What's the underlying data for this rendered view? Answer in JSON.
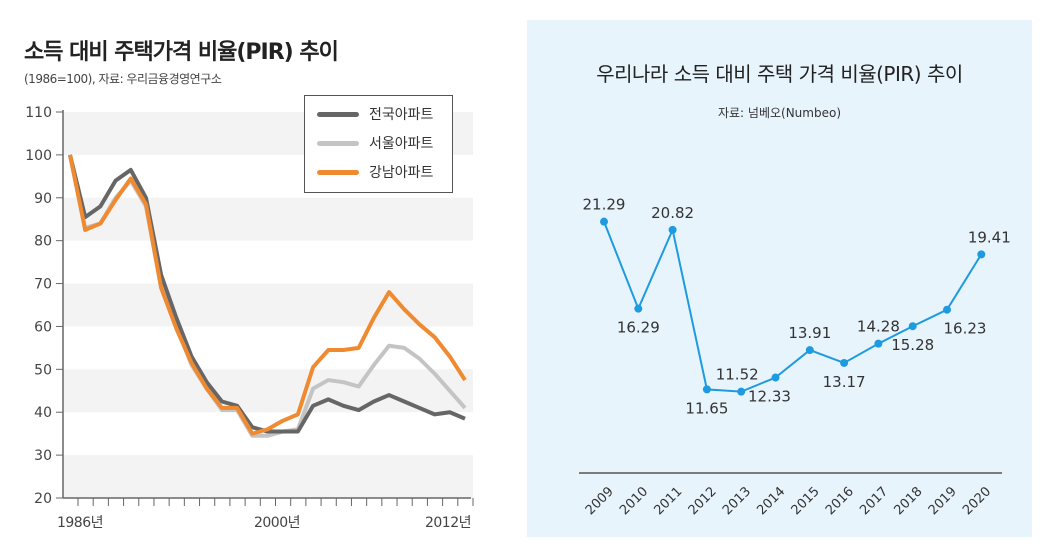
{
  "chart_data": [
    {
      "type": "line",
      "title": "소득 대비 주택가격 비율(PIR) 추이",
      "subtitle": "(1986=100), 자료: 우리금융경영연구소",
      "x": [
        1986,
        1987,
        1988,
        1989,
        1990,
        1991,
        1992,
        1993,
        1994,
        1995,
        1996,
        1997,
        1998,
        1999,
        2000,
        2001,
        2002,
        2003,
        2004,
        2005,
        2006,
        2007,
        2008,
        2009,
        2010,
        2011,
        2012
      ],
      "x_tick_labels": [
        "1986년",
        "2000년",
        "2012년"
      ],
      "y_ticks": [
        20,
        30,
        40,
        50,
        60,
        70,
        80,
        90,
        100,
        110
      ],
      "ylim": [
        20,
        110
      ],
      "grid": "alternating horizontal bands",
      "legend": "top-right",
      "series": [
        {
          "name": "전국아파트",
          "color": "#666666",
          "values": [
            100,
            85.5,
            88,
            94,
            96.5,
            90,
            72,
            62,
            53,
            47,
            42.5,
            41.5,
            36.5,
            35.5,
            35.5,
            35.5,
            41.5,
            43,
            41.5,
            40.5,
            42.5,
            44,
            42.5,
            41,
            39.5,
            40,
            38.5
          ]
        },
        {
          "name": "서울아파트",
          "color": "#c4c4c4",
          "values": [
            100,
            83,
            84,
            90,
            94,
            88,
            69,
            60,
            51,
            45.5,
            40.5,
            40.5,
            34.5,
            34.5,
            35.5,
            36,
            45.5,
            47.5,
            47,
            46,
            51,
            55.5,
            55,
            52.5,
            49,
            45,
            41
          ]
        },
        {
          "name": "강남아파트",
          "color": "#f08a30",
          "values": [
            100,
            82.5,
            84,
            89.5,
            94.5,
            88.5,
            69,
            59.5,
            51.5,
            45.5,
            41,
            41,
            35,
            36,
            38,
            39.5,
            50.5,
            54.5,
            54.5,
            55,
            62,
            68,
            64,
            60.5,
            57.5,
            53,
            47.5
          ]
        }
      ]
    },
    {
      "type": "line",
      "title": "우리나라 소득 대비 주택 가격 비율(PIR) 추이",
      "subtitle": "자료: 넘베오(Numbeo)",
      "categories": [
        "2009",
        "2010",
        "2011",
        "2012",
        "2013",
        "2014",
        "2015",
        "2016",
        "2017",
        "2018",
        "2019",
        "2020"
      ],
      "values": [
        21.29,
        16.29,
        20.82,
        11.65,
        11.52,
        12.33,
        13.91,
        13.17,
        14.28,
        15.28,
        16.23,
        19.41
      ],
      "data_labels": [
        "21.29",
        "16.29",
        "20.82",
        "11.65",
        "11.52",
        "12.33",
        "13.91",
        "13.17",
        "14.28",
        "15.28",
        "16.23",
        "19.41"
      ],
      "color": "#1e9be0",
      "background": "#e8f4fc",
      "grid": false
    }
  ]
}
